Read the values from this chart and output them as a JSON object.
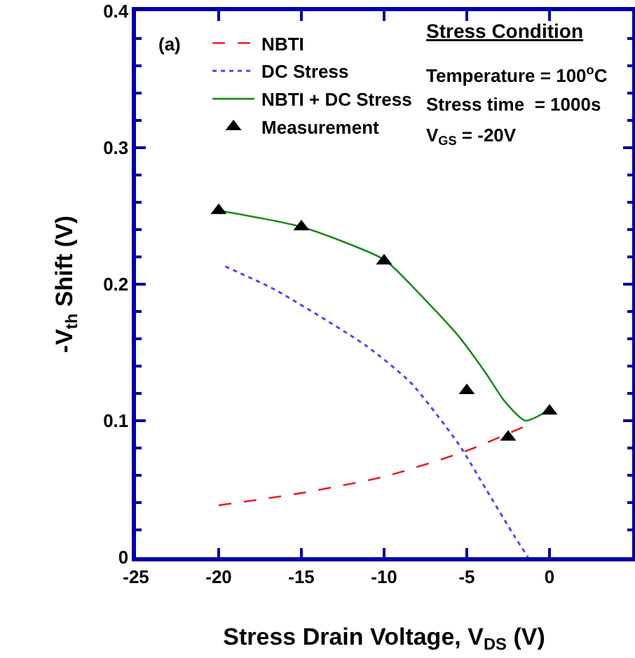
{
  "chart_data": {
    "type": "line",
    "xlabel": "Stress Drain Voltage, V$_{DS}$ (V)",
    "ylabel": "-V$_{th}$ Shift (V)",
    "xlim": [
      -25,
      5
    ],
    "xticks": [
      -25,
      -20,
      -15,
      -10,
      -5,
      0
    ],
    "ylim": [
      0,
      0.4
    ],
    "yticks": [
      0,
      0.1,
      0.2,
      0.3,
      0.4
    ],
    "grid": false,
    "legend": "top left",
    "annotations": [
      "(a)",
      "Stress Condition",
      "Temperature = 100$^{o}$C",
      "Stress time  = 1000s",
      "V$_{GS}$ = -20V"
    ],
    "series": [
      {
        "name": "NBTI",
        "color": "#e8202a",
        "line_style": "dashed",
        "marker": "none",
        "x": [
          -20,
          -15,
          -10,
          -5,
          -0.9
        ],
        "values": [
          0.038,
          0.047,
          0.059,
          0.078,
          0.099
        ]
      },
      {
        "name": "DC Stress",
        "color": "#4a4aff",
        "line_style": "dotted",
        "marker": "none",
        "x": [
          -19.6,
          -16.6,
          -11.1,
          -8.4,
          -5.5,
          -3.8,
          -2.1,
          -1.3
        ],
        "values": [
          0.213,
          0.196,
          0.155,
          0.128,
          0.083,
          0.049,
          0.015,
          0
        ]
      },
      {
        "name": "NBTI + DC Stress",
        "color": "#1a8c1a",
        "line_style": "solid",
        "marker": "none",
        "x": [
          -20,
          -15,
          -10,
          -8.1,
          -5.5,
          -3.8,
          -2.7,
          -1.45,
          0
        ],
        "values": [
          0.254,
          0.242,
          0.218,
          0.196,
          0.162,
          0.134,
          0.114,
          0.1,
          0.108
        ]
      },
      {
        "name": "Measurement",
        "type": "scatter",
        "color": "#000000",
        "marker": "triangle",
        "x": [
          -20,
          -15,
          -10,
          -5,
          -2.5,
          0
        ],
        "values": [
          0.254,
          0.242,
          0.217,
          0.122,
          0.088,
          0.107
        ]
      }
    ]
  }
}
